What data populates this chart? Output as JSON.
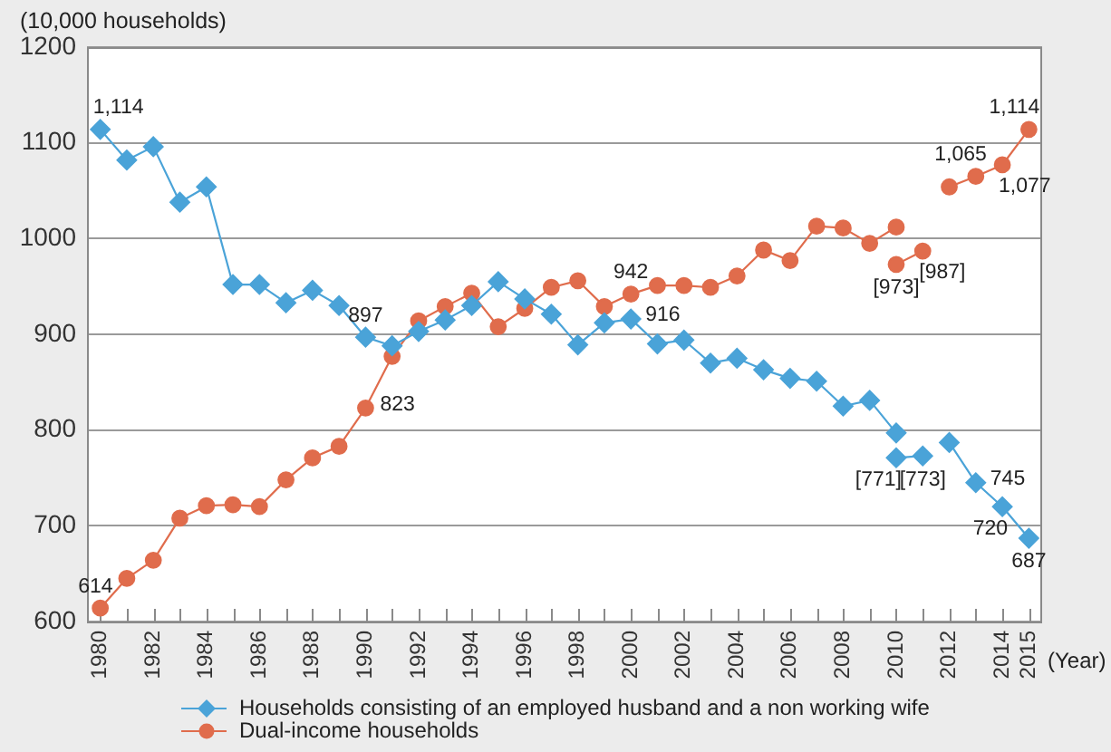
{
  "chart_data": {
    "type": "line",
    "ylabel": "(10,000 households)",
    "xlabel": "(Year)",
    "x": [
      1980,
      1981,
      1982,
      1983,
      1984,
      1985,
      1986,
      1987,
      1988,
      1989,
      1990,
      1991,
      1992,
      1993,
      1994,
      1995,
      1996,
      1997,
      1998,
      1999,
      2000,
      2001,
      2002,
      2003,
      2004,
      2005,
      2006,
      2007,
      2008,
      2009,
      2010,
      2011,
      2012,
      2013,
      2014,
      2015
    ],
    "xlim": [
      1979.5,
      2015.5
    ],
    "xticks": [
      1980,
      {
        "value": 1981,
        "label": null
      },
      1982,
      {
        "value": 1983,
        "label": null
      },
      1984,
      {
        "value": 1985,
        "label": null
      },
      1986,
      {
        "value": 1987,
        "label": null
      },
      1988,
      {
        "value": 1989,
        "label": null
      },
      1990,
      {
        "value": 1991,
        "label": null
      },
      1992,
      {
        "value": 1993,
        "label": null
      },
      1994,
      {
        "value": 1995,
        "label": null
      },
      1996,
      {
        "value": 1997,
        "label": null
      },
      1998,
      {
        "value": 1999,
        "label": null
      },
      2000,
      {
        "value": 2001,
        "label": null
      },
      2002,
      {
        "value": 2003,
        "label": null
      },
      2004,
      {
        "value": 2005,
        "label": null
      },
      2006,
      {
        "value": 2007,
        "label": null
      },
      2008,
      {
        "value": 2009,
        "label": null
      },
      2010,
      {
        "value": 2011,
        "label": null
      },
      2012,
      {
        "value": 2013,
        "label": null
      },
      2014,
      2015
    ],
    "ylim": [
      600,
      1200
    ],
    "yticks": [
      600,
      700,
      800,
      900,
      1000,
      1100,
      1200
    ],
    "grid": "y",
    "legend": "bottom",
    "series": [
      {
        "name": "Households consisting of an employed husband and a non working wife",
        "color": "#4aa3d8",
        "marker": "diamond",
        "values": [
          1114,
          1082,
          1096,
          1038,
          1054,
          952,
          952,
          933,
          946,
          930,
          897,
          888,
          903,
          915,
          930,
          955,
          937,
          921,
          889,
          912,
          916,
          890,
          894,
          870,
          875,
          863,
          854,
          851,
          825,
          831,
          797,
          null,
          787,
          745,
          720,
          687
        ],
        "value_labels": [
          "1,114",
          null,
          null,
          null,
          null,
          null,
          null,
          null,
          null,
          null,
          "897",
          null,
          null,
          null,
          null,
          null,
          null,
          null,
          null,
          null,
          "916",
          null,
          null,
          null,
          null,
          null,
          null,
          null,
          null,
          null,
          null,
          null,
          null,
          "745",
          "720",
          "687"
        ]
      },
      {
        "name": "Dual-income households",
        "color": "#e06c4c",
        "marker": "circle",
        "values": [
          614,
          645,
          664,
          708,
          721,
          722,
          720,
          748,
          771,
          783,
          823,
          877,
          914,
          929,
          943,
          908,
          927,
          949,
          956,
          929,
          942,
          951,
          951,
          949,
          961,
          988,
          977,
          1013,
          1011,
          995,
          1012,
          null,
          1054,
          1065,
          1077,
          1114
        ],
        "value_labels": [
          "614",
          null,
          null,
          null,
          null,
          null,
          null,
          null,
          null,
          null,
          "823",
          null,
          null,
          null,
          null,
          null,
          null,
          null,
          null,
          null,
          "942",
          null,
          null,
          null,
          null,
          null,
          null,
          null,
          null,
          null,
          null,
          null,
          null,
          "1,065",
          "1,077",
          "1,114"
        ]
      },
      {
        "color": "#4aa3d8",
        "marker": "diamond",
        "values": [
          null,
          null,
          null,
          null,
          null,
          null,
          null,
          null,
          null,
          null,
          null,
          null,
          null,
          null,
          null,
          null,
          null,
          null,
          null,
          null,
          null,
          null,
          null,
          null,
          null,
          null,
          null,
          null,
          null,
          null,
          771,
          773,
          null,
          null,
          null,
          null
        ],
        "value_labels": [
          null,
          null,
          null,
          null,
          null,
          null,
          null,
          null,
          null,
          null,
          null,
          null,
          null,
          null,
          null,
          null,
          null,
          null,
          null,
          null,
          null,
          null,
          null,
          null,
          null,
          null,
          null,
          null,
          null,
          null,
          "[771]",
          "[773]",
          null,
          null,
          null,
          null
        ]
      },
      {
        "color": "#e06c4c",
        "marker": "circle",
        "values": [
          null,
          null,
          null,
          null,
          null,
          null,
          null,
          null,
          null,
          null,
          null,
          null,
          null,
          null,
          null,
          null,
          null,
          null,
          null,
          null,
          null,
          null,
          null,
          null,
          null,
          null,
          null,
          null,
          null,
          null,
          973,
          987,
          null,
          null,
          null,
          null
        ],
        "value_labels": [
          null,
          null,
          null,
          null,
          null,
          null,
          null,
          null,
          null,
          null,
          null,
          null,
          null,
          null,
          null,
          null,
          null,
          null,
          null,
          null,
          null,
          null,
          null,
          null,
          null,
          null,
          null,
          null,
          null,
          null,
          "[973]",
          "[987]",
          null,
          null,
          null,
          null
        ]
      }
    ]
  }
}
